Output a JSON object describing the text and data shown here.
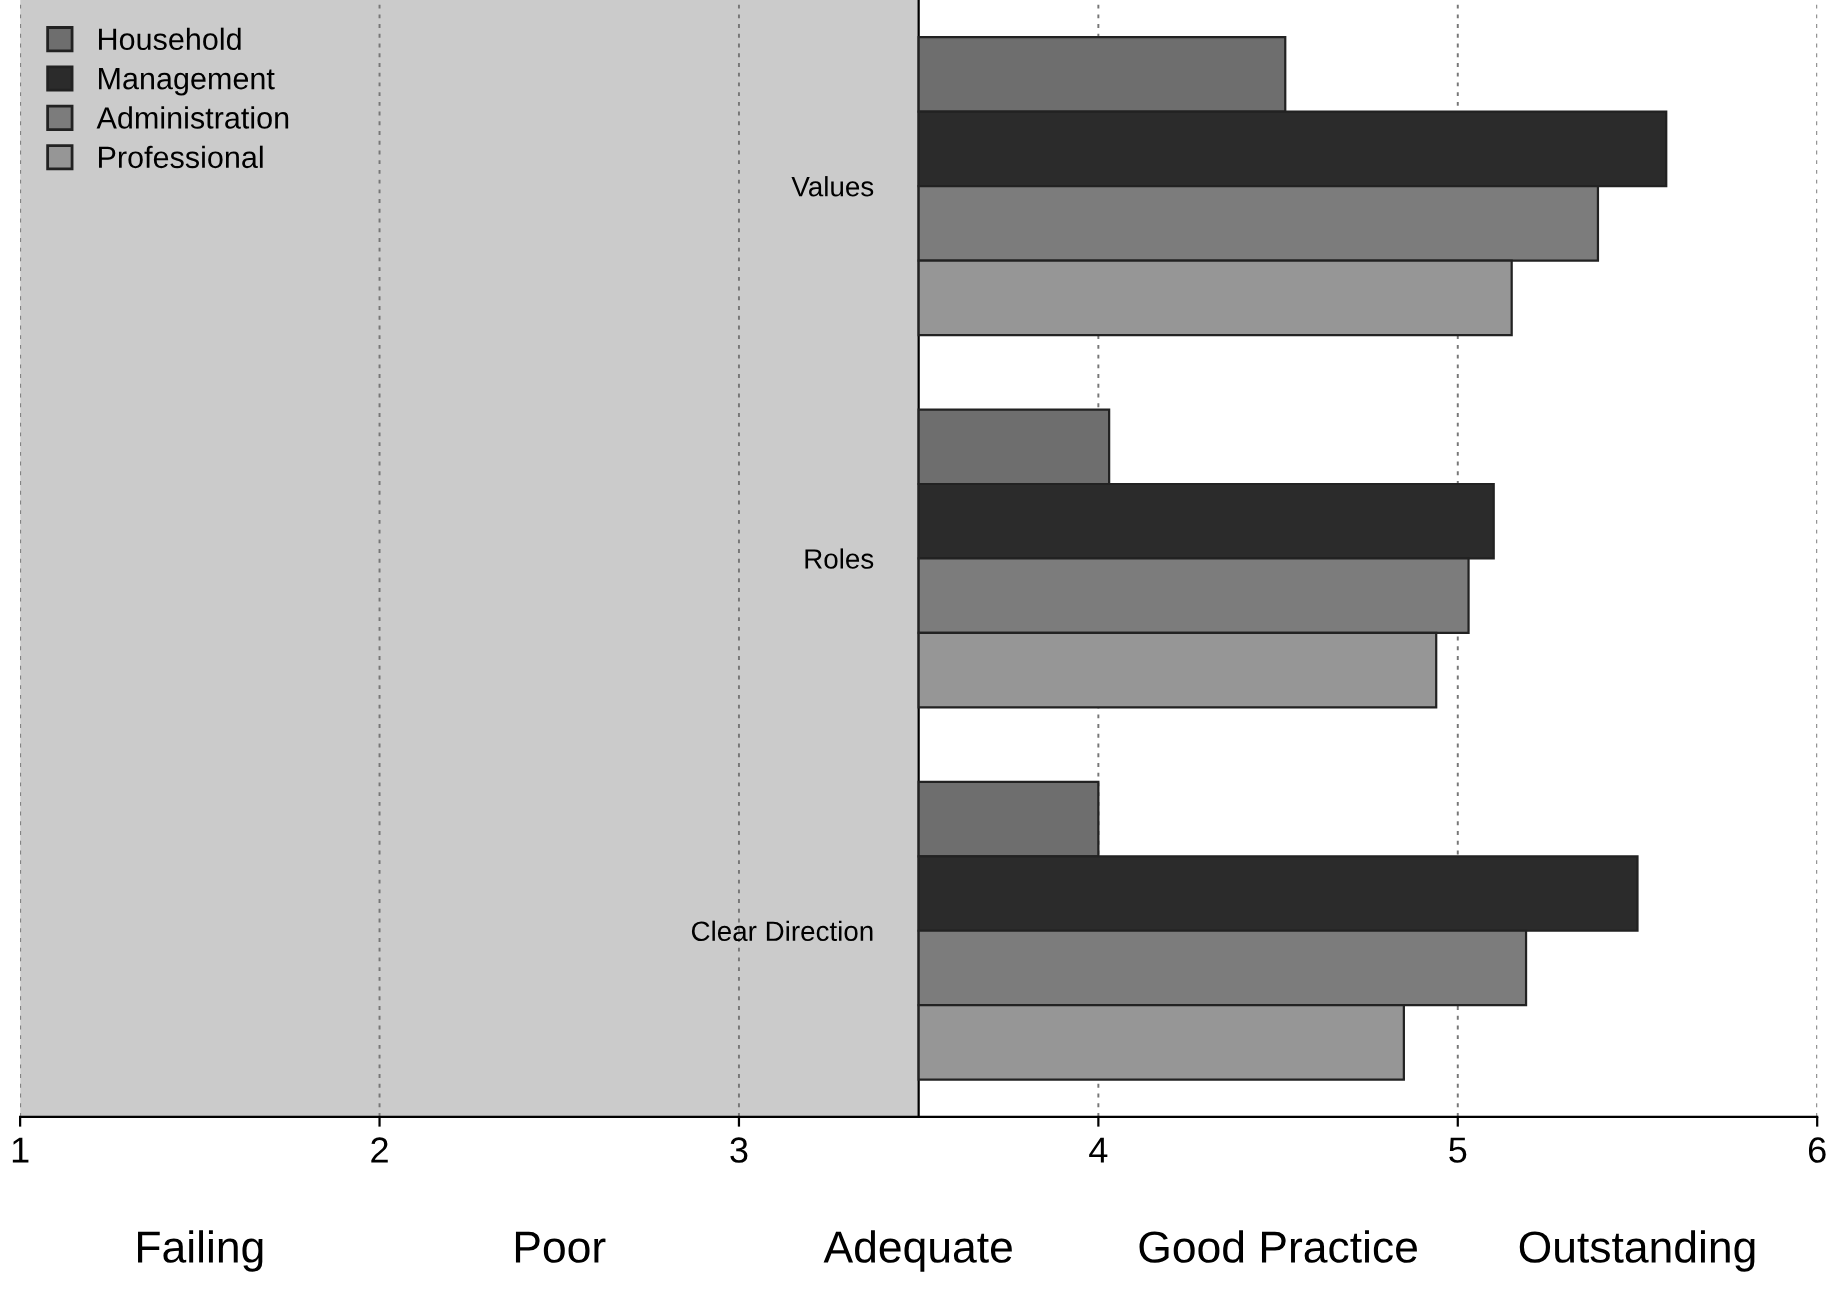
{
  "chart_data": {
    "type": "bar",
    "orientation": "horizontal",
    "categories": [
      "Values",
      "Roles",
      "Clear Direction"
    ],
    "series": [
      {
        "name": "Household",
        "color": "#6e6e6e",
        "base": [
          3.5,
          3.5,
          3.5
        ],
        "values": [
          1.02,
          0.53,
          0.5
        ]
      },
      {
        "name": "Management",
        "color": "#2b2b2b",
        "base": [
          3.5,
          3.5,
          3.5
        ],
        "values": [
          2.08,
          1.6,
          2.0
        ]
      },
      {
        "name": "Administration",
        "color": "#7c7c7c",
        "base": [
          3.5,
          3.5,
          3.5
        ],
        "values": [
          1.89,
          1.53,
          1.69
        ]
      },
      {
        "name": "Professional",
        "color": "#969696",
        "base": [
          3.5,
          3.5,
          3.5
        ],
        "values": [
          1.65,
          1.44,
          1.35
        ]
      }
    ],
    "xlim": [
      1,
      6
    ],
    "xticks": [
      1,
      2,
      3,
      4,
      5,
      6
    ],
    "grid": "x",
    "legend": "top left",
    "bands": [
      {
        "axis": "x",
        "from": 1,
        "to": 3.5,
        "color": "#cbcbcb"
      }
    ],
    "annotations": [
      "Failing",
      "Poor",
      "Adequate",
      "Good Practice",
      "Outstanding"
    ]
  }
}
